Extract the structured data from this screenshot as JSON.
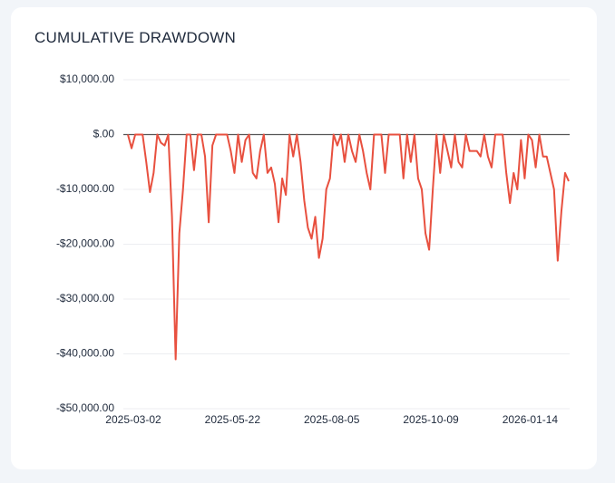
{
  "chart_data": {
    "type": "line",
    "title": "CUMULATIVE DRAWDOWN",
    "categories": [
      "2025-03-02",
      null,
      null,
      null,
      null,
      null,
      null,
      null,
      null,
      null,
      null,
      null,
      null,
      null,
      null,
      null,
      null,
      null,
      null,
      null,
      null,
      null,
      null,
      null,
      null,
      null,
      null,
      "2025-05-22",
      null,
      null,
      null,
      null,
      null,
      null,
      null,
      null,
      null,
      null,
      null,
      null,
      null,
      null,
      null,
      null,
      null,
      null,
      null,
      null,
      null,
      null,
      null,
      null,
      null,
      null,
      "2025-08-05",
      null,
      null,
      null,
      null,
      null,
      null,
      null,
      null,
      null,
      null,
      null,
      null,
      null,
      null,
      null,
      null,
      null,
      null,
      null,
      null,
      null,
      null,
      null,
      null,
      null,
      null,
      "2025-10-09",
      null,
      null,
      null,
      null,
      null,
      null,
      null,
      null,
      null,
      null,
      null,
      null,
      null,
      null,
      null,
      null,
      null,
      null,
      null,
      null,
      null,
      null,
      null,
      null,
      null,
      null,
      "2026-01-14",
      null,
      null,
      null,
      null,
      null,
      null,
      null,
      null,
      null,
      null,
      null,
      null
    ],
    "series": [
      {
        "color": "#e8503f",
        "values": [
          0,
          -2500,
          0,
          0,
          0,
          -5000,
          -10500,
          -7000,
          0,
          -1500,
          -2000,
          0,
          -15000,
          -41000,
          -18000,
          -10000,
          0,
          0,
          -6500,
          0,
          0,
          -4000,
          -16000,
          -2000,
          0,
          0,
          0,
          0,
          -3000,
          -7000,
          0,
          -5000,
          -1000,
          0,
          -7000,
          -8000,
          -3000,
          0,
          -7000,
          -6000,
          -9000,
          -16000,
          -8000,
          -11000,
          0,
          -4000,
          0,
          -5000,
          -12000,
          -17000,
          -19000,
          -15000,
          -22500,
          -19000,
          -10000,
          -8000,
          0,
          -2000,
          0,
          -5000,
          0,
          -3000,
          -5000,
          0,
          -3000,
          -7000,
          -10000,
          0,
          0,
          0,
          -7000,
          0,
          0,
          0,
          0,
          -8000,
          0,
          -5000,
          0,
          -8000,
          -10000,
          -18000,
          -21000,
          -10000,
          0,
          -7000,
          0,
          -3000,
          -6000,
          0,
          -5000,
          -6000,
          0,
          -3000,
          -3000,
          -3000,
          -4000,
          0,
          -4000,
          -6000,
          0,
          0,
          0,
          -7000,
          -12500,
          -7000,
          -10000,
          -1000,
          -8000,
          0,
          -1000,
          -6000,
          0,
          -4000,
          -4000,
          -7000,
          -10000,
          -23000,
          -14000,
          -7000,
          -8500
        ]
      }
    ],
    "ylim": [
      -50000,
      10000
    ],
    "yticks": [
      {
        "value": 10000,
        "label": "$10,000.00"
      },
      {
        "value": 0,
        "label": "$.00"
      },
      {
        "value": -10000,
        "label": "-$10,000.00"
      },
      {
        "value": -20000,
        "label": "-$20,000.00"
      },
      {
        "value": -30000,
        "label": "-$30,000.00"
      },
      {
        "value": -40000,
        "label": "-$40,000.00"
      },
      {
        "value": -50000,
        "label": "-$50,000.00"
      }
    ],
    "grid": true
  }
}
